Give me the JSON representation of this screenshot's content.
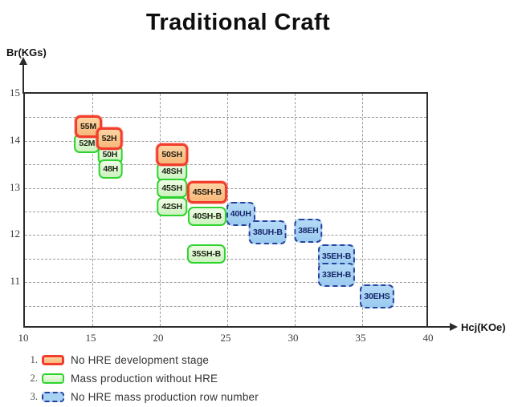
{
  "title": "Traditional Craft",
  "chart_data": {
    "type": "scatter",
    "title": "Traditional Craft",
    "xlabel": "Hcj(KOe)",
    "ylabel": "Br(KGs)",
    "xlim": [
      10,
      40
    ],
    "ylim": [
      10,
      15
    ],
    "x_ticks": [
      10,
      15,
      20,
      25,
      30,
      35,
      40
    ],
    "y_ticks": [
      15,
      14,
      13,
      12,
      11
    ],
    "grid": true,
    "grid_step_x": 5,
    "grid_step_y": 0.5,
    "legend_position": "bottom-left",
    "series": [
      {
        "name": "No HRE development stage",
        "style": "dev-no-hre",
        "marker": "rounded-box-red-solid",
        "points": [
          {
            "label": "55M",
            "x": 14.7,
            "y": 14.3
          },
          {
            "label": "52H",
            "x": 16.25,
            "y": 14.05
          },
          {
            "label": "50SH",
            "x": 20.9,
            "y": 13.7
          },
          {
            "label": "45SH-B",
            "x": 23.5,
            "y": 12.9
          }
        ]
      },
      {
        "name": "Mass production without HRE",
        "style": "mass-no-hre",
        "marker": "rounded-box-green-solid",
        "points": [
          {
            "label": "52M",
            "x": 14.6,
            "y": 13.95
          },
          {
            "label": "50H",
            "x": 16.3,
            "y": 13.7
          },
          {
            "label": "48H",
            "x": 16.35,
            "y": 13.4
          },
          {
            "label": "48SH",
            "x": 20.9,
            "y": 13.35
          },
          {
            "label": "45SH",
            "x": 20.9,
            "y": 13.0
          },
          {
            "label": "42SH",
            "x": 20.9,
            "y": 12.6
          },
          {
            "label": "40SH-B",
            "x": 23.5,
            "y": 12.4
          },
          {
            "label": "35SH-B",
            "x": 23.45,
            "y": 11.6
          }
        ]
      },
      {
        "name": "No HRE mass production row number",
        "style": "hre-mass",
        "marker": "rounded-box-blue-dashed",
        "points": [
          {
            "label": "40UH",
            "x": 26.0,
            "y": 12.45
          },
          {
            "label": "38UH-B",
            "x": 28.0,
            "y": 12.05
          },
          {
            "label": "38EH",
            "x": 31.0,
            "y": 12.1
          },
          {
            "label": "35EH-B",
            "x": 33.1,
            "y": 11.55
          },
          {
            "label": "33EH-B",
            "x": 33.1,
            "y": 11.15
          },
          {
            "label": "30EHS",
            "x": 36.1,
            "y": 10.7
          }
        ]
      }
    ]
  },
  "legend": [
    {
      "num": "1.",
      "style": "dev-no-hre",
      "label": "No HRE development stage"
    },
    {
      "num": "2.",
      "style": "mass-no-hre",
      "label": "Mass production without HRE"
    },
    {
      "num": "3.",
      "style": "hre-mass",
      "label": "No HRE mass production row number"
    }
  ],
  "colors": {
    "dev_border": "#f23d2c",
    "dev_fill": "#f9bd85",
    "mass_border": "#2dd42d",
    "mass_fill": "#d9f6cd",
    "hre_border": "#28419d",
    "hre_fill": "#a8d2f2",
    "grid": "#9a9a9a",
    "axis": "#2b2b2b"
  }
}
